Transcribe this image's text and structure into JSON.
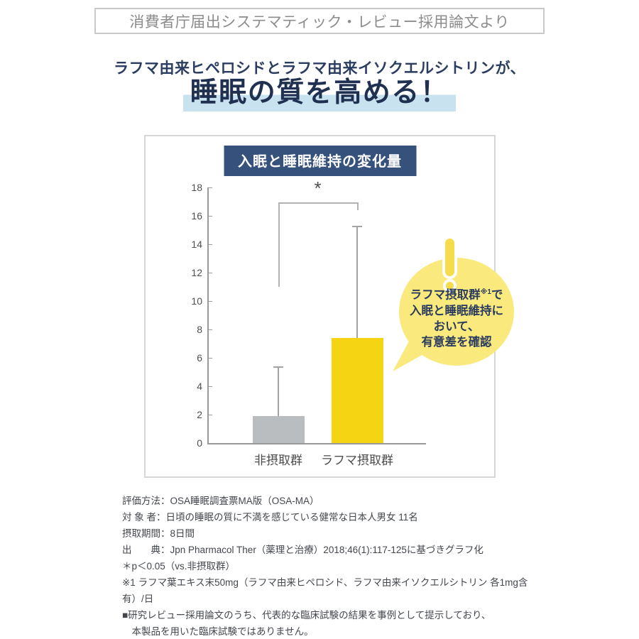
{
  "banner": {
    "text": "消費者庁届出システマティック・レビュー採用論文より"
  },
  "headline": {
    "subtitle": "ラフマ由来ヒペロシドとラフマ由来イソクエルシトリンが、",
    "title": "睡眠の質を高める！"
  },
  "chart_data": {
    "type": "bar",
    "title": "入眠と睡眠維持の変化量",
    "categories": [
      "非摂取群",
      "ラフマ摂取群"
    ],
    "values": [
      1.9,
      7.4
    ],
    "error_upper": [
      3.5,
      7.9
    ],
    "bar_colors": [
      "#babdc0",
      "#f5d414"
    ],
    "xlabel": "",
    "ylabel": "",
    "ylim": [
      0,
      18
    ],
    "ytick_step": 2,
    "grid": false,
    "legend": "none",
    "significance_label": "*",
    "significance_note": "p<0.05 vs. 非摂取群"
  },
  "bubble": {
    "line1": {
      "pre": "ラフマ摂取群",
      "sup": "※1",
      "post": "で"
    },
    "line2": "入眠と睡眠維持に",
    "line3": "おいて、",
    "line4": "有意差を確認"
  },
  "footnotes": {
    "lines": [
      "評価方法：OSA睡眠調査票MA版（OSA-MA）",
      "対 象 者：日頃の睡眠の質に不満を感じている健常な日本人男女 11名",
      "摂取期間：8日間",
      "出　　典：Jpn Pharmacol Ther（薬理と治療）2018;46(1):117-125に基づきグラフ化",
      "＊p＜0.05（vs.非摂取群）",
      "※1 ラフマ葉エキス末50mg（ラフマ由来ヒペロシド、ラフマ由来イソクエルシトリン 各1mg含有）/日",
      "■研究レビュー採用論文のうち、代表的な臨床試験の結果を事例として提示しており、",
      "　本製品を用いた臨床試験ではありません。"
    ]
  },
  "colors": {
    "title_navy": "#1f3050",
    "title_highlight": "#c9e2f0",
    "chart_title_bg": "#36517c",
    "bar_gray": "#babdc0",
    "bar_yellow": "#f5d414",
    "bubble_yellow": "#fae97d",
    "exclamation_yellow": "#f6db4a",
    "banner_gray": "#8c8c8c"
  }
}
